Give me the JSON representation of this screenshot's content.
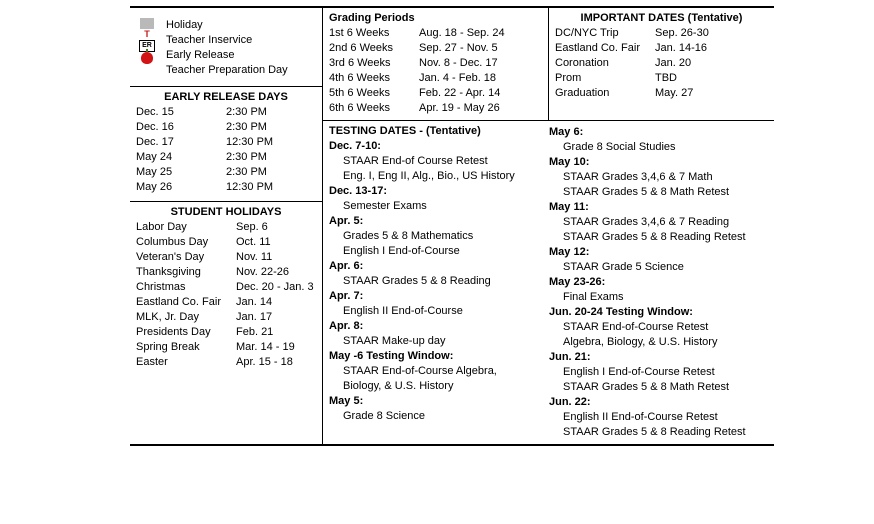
{
  "legend": {
    "items": [
      "Holiday",
      "Teacher Inservice",
      "Early Release",
      "Teacher Preparation Day"
    ]
  },
  "early": {
    "title": "EARLY RELEASE DAYS",
    "rows": [
      {
        "d": "Dec. 15",
        "t": "2:30 PM"
      },
      {
        "d": "Dec. 16",
        "t": "2:30 PM"
      },
      {
        "d": "Dec. 17",
        "t": "12:30 PM"
      },
      {
        "d": "May  24",
        "t": "2:30 PM"
      },
      {
        "d": "May  25",
        "t": "2:30 PM"
      },
      {
        "d": "May  26",
        "t": "12:30 PM"
      }
    ]
  },
  "holidays": {
    "title": "STUDENT HOLIDAYS",
    "rows": [
      {
        "d": "Labor Day",
        "t": "Sep. 6"
      },
      {
        "d": "Columbus Day",
        "t": "Oct. 11"
      },
      {
        "d": "Veteran's Day",
        "t": "Nov. 11"
      },
      {
        "d": "Thanksgiving",
        "t": "Nov. 22-26"
      },
      {
        "d": "Christmas",
        "t": "Dec. 20 - Jan. 3"
      },
      {
        "d": "Eastland Co. Fair",
        "t": "Jan. 14"
      },
      {
        "d": "MLK, Jr. Day",
        "t": "Jan. 17"
      },
      {
        "d": "Presidents Day",
        "t": "Feb. 21"
      },
      {
        "d": "Spring Break",
        "t": "Mar. 14 - 19"
      },
      {
        "d": "Easter",
        "t": "Apr. 15 - 18"
      }
    ]
  },
  "grading": {
    "title": "Grading Periods",
    "rows": [
      {
        "d": "1st 6 Weeks",
        "t": "Aug. 18 - Sep. 24"
      },
      {
        "d": "2nd 6 Weeks",
        "t": "Sep. 27 - Nov. 5"
      },
      {
        "d": "3rd 6 Weeks",
        "t": "Nov. 8 - Dec. 17"
      },
      {
        "d": "4th 6 Weeks",
        "t": "Jan. 4 - Feb. 18"
      },
      {
        "d": "5th 6 Weeks",
        "t": "Feb. 22 - Apr. 14"
      },
      {
        "d": "6th 6 Weeks",
        "t": "Apr. 19 - May 26"
      }
    ]
  },
  "important": {
    "title": "IMPORTANT DATES (Tentative)",
    "rows": [
      {
        "d": "DC/NYC Trip",
        "t": "Sep. 26-30"
      },
      {
        "d": "Eastland Co. Fair",
        "t": "Jan. 14-16"
      },
      {
        "d": "Coronation",
        "t": "Jan. 20"
      },
      {
        "d": "Prom",
        "t": "TBD"
      },
      {
        "d": "Graduation",
        "t": "May. 27"
      }
    ]
  },
  "testing": {
    "title": "TESTING DATES - (Tentative)",
    "col1": [
      {
        "b": true,
        "t": "Dec. 7-10:"
      },
      {
        "b": false,
        "t": "STAAR End-of Course Retest"
      },
      {
        "b": false,
        "t": "Eng. I, Eng II, Alg., Bio., US History"
      },
      {
        "b": true,
        "t": "Dec. 13-17:"
      },
      {
        "b": false,
        "t": "Semester Exams"
      },
      {
        "b": true,
        "t": "Apr. 5:"
      },
      {
        "b": false,
        "t": "Grades 5 & 8 Mathematics"
      },
      {
        "b": false,
        "t": "English I End-of-Course"
      },
      {
        "b": true,
        "t": "Apr. 6:"
      },
      {
        "b": false,
        "t": "STAAR Grades 5 & 8 Reading"
      },
      {
        "b": true,
        "t": "Apr. 7:"
      },
      {
        "b": false,
        "t": "English II End-of-Course"
      },
      {
        "b": true,
        "t": "Apr. 8:"
      },
      {
        "b": false,
        "t": "STAAR Make-up day"
      },
      {
        "b": true,
        "t": "May    -6 Testing Window:"
      },
      {
        "b": false,
        "t": "STAAR End-of-Course Algebra,"
      },
      {
        "b": false,
        "t": "Biology, & U.S. History"
      },
      {
        "b": true,
        "t": "May  5:"
      },
      {
        "b": false,
        "t": "Grade 8 Science"
      }
    ],
    "col2": [
      {
        "b": true,
        "t": "May  6:"
      },
      {
        "b": false,
        "t": "Grade 8 Social Studies"
      },
      {
        "b": true,
        "t": "May 10:"
      },
      {
        "b": false,
        "t": "STAAR Grades 3,4,6 & 7 Math"
      },
      {
        "b": false,
        "t": "STAAR Grades 5 & 8 Math Retest"
      },
      {
        "b": true,
        "t": "May  11:"
      },
      {
        "b": false,
        "t": "STAAR Grades 3,4,6 & 7 Reading"
      },
      {
        "b": false,
        "t": "STAAR Grades 5 & 8 Reading Retest"
      },
      {
        "b": true,
        "t": "May 12:"
      },
      {
        "b": false,
        "t": "STAAR Grade 5 Science"
      },
      {
        "b": true,
        "t": "May  23-26:"
      },
      {
        "b": false,
        "t": "Final Exams"
      },
      {
        "b": true,
        "t": "Jun. 20-24 Testing Window:"
      },
      {
        "b": false,
        "t": "STAAR End-of-Course Retest"
      },
      {
        "b": false,
        "t": "Algebra, Biology, & U.S. History"
      },
      {
        "b": true,
        "t": "Jun. 21:"
      },
      {
        "b": false,
        "t": "English I End-of-Course Retest"
      },
      {
        "b": false,
        "t": "STAAR Grades 5 & 8 Math Retest"
      },
      {
        "b": true,
        "t": "Jun. 22:"
      },
      {
        "b": false,
        "t": "English II End-of-Course Retest"
      },
      {
        "b": false,
        "t": "STAAR Grades 5 & 8 Reading Retest"
      }
    ]
  }
}
